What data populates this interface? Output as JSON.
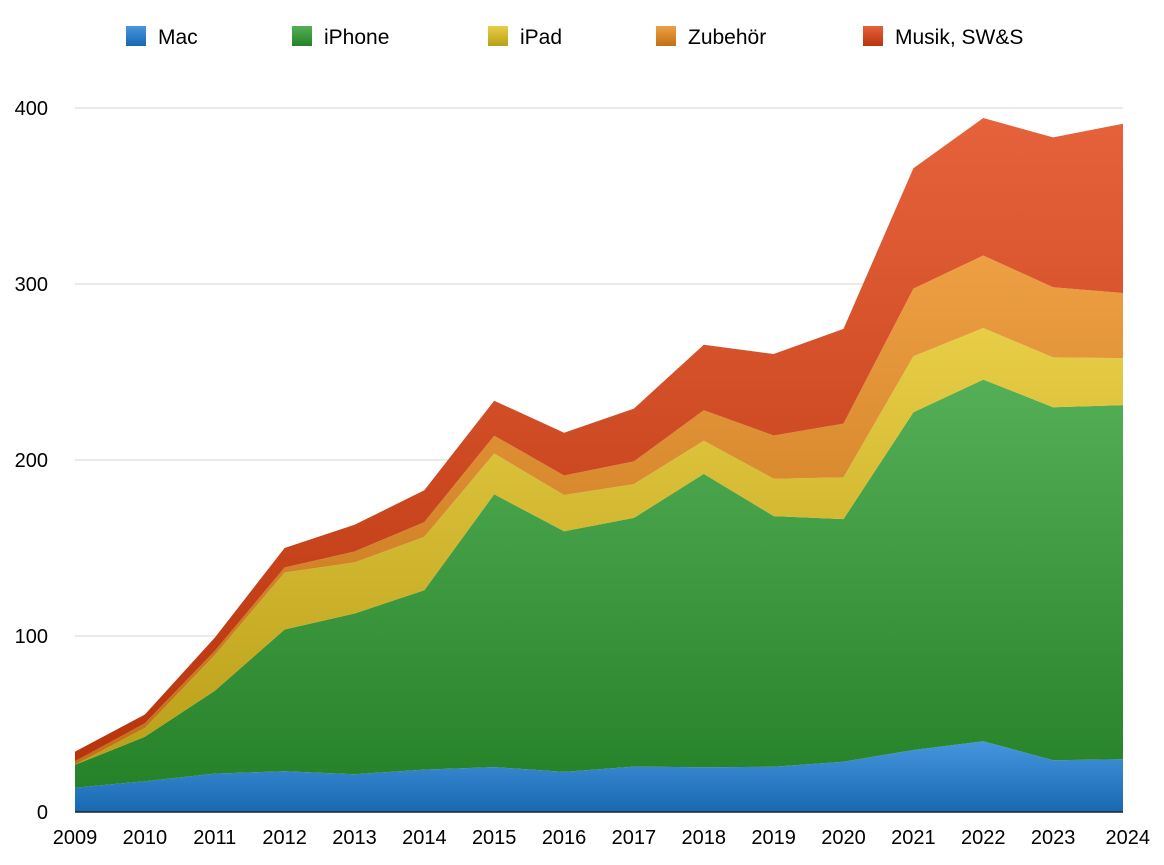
{
  "chart_data": {
    "type": "area",
    "stacked": true,
    "title": "",
    "xlabel": "",
    "ylabel": "",
    "x": [
      "2009",
      "2010",
      "2011",
      "2012",
      "2013",
      "2014",
      "2015",
      "2016",
      "2017",
      "2018",
      "2019",
      "2020",
      "2021",
      "2022",
      "2023",
      "2024"
    ],
    "ylim": [
      0,
      400
    ],
    "yticks": [
      "0",
      "100",
      "200",
      "300",
      "400"
    ],
    "grid": true,
    "legend_position": "top",
    "series": [
      {
        "name": "Mac",
        "color": "#1d7fd8",
        "values": [
          13.8,
          17.5,
          21.8,
          23.2,
          21.5,
          24.1,
          25.5,
          22.8,
          25.8,
          25.4,
          25.7,
          28.6,
          35.2,
          40.2,
          29.4,
          30.0
        ]
      },
      {
        "name": "iPhone",
        "color": "#2e9e32",
        "values": [
          13.0,
          25.2,
          47.0,
          80.5,
          91.3,
          101.9,
          155.0,
          136.7,
          141.3,
          166.7,
          142.4,
          137.8,
          191.9,
          205.5,
          200.6,
          201.2
        ]
      },
      {
        "name": "iPad",
        "color": "#e3c21f",
        "values": [
          0.0,
          5.0,
          20.3,
          32.4,
          29.0,
          30.3,
          23.2,
          20.6,
          19.2,
          18.8,
          21.3,
          23.7,
          31.9,
          29.3,
          28.3,
          26.7
        ]
      },
      {
        "name": "Zubehör",
        "color": "#ea8a1b",
        "values": [
          2.0,
          2.7,
          2.4,
          2.8,
          6.2,
          8.4,
          10.1,
          11.1,
          12.9,
          17.4,
          24.5,
          30.6,
          38.4,
          41.2,
          39.8,
          37.0
        ]
      },
      {
        "name": "Musik, SW&S",
        "color": "#e0400f",
        "values": [
          5.5,
          5.0,
          7.5,
          11.1,
          15.2,
          18.1,
          19.9,
          24.3,
          30.0,
          37.2,
          46.3,
          53.8,
          68.4,
          78.1,
          85.2,
          96.2
        ]
      }
    ]
  }
}
